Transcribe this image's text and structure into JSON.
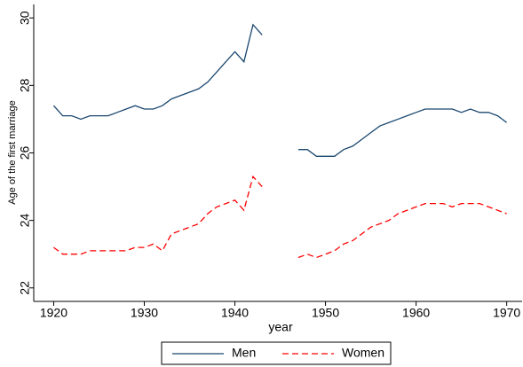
{
  "chart_data": {
    "type": "line",
    "y_label": "Age of the first marriage",
    "x_label": "year",
    "x": [
      1920,
      1921,
      1922,
      1923,
      1924,
      1925,
      1926,
      1927,
      1928,
      1929,
      1930,
      1931,
      1932,
      1933,
      1934,
      1935,
      1936,
      1937,
      1938,
      1939,
      1940,
      1941,
      1942,
      1943,
      1944,
      1945,
      1946,
      1947,
      1948,
      1949,
      1950,
      1951,
      1952,
      1953,
      1954,
      1955,
      1956,
      1957,
      1958,
      1959,
      1960,
      1961,
      1962,
      1963,
      1964,
      1965,
      1966,
      1967,
      1968,
      1969,
      1970
    ],
    "series": [
      {
        "name": "Men",
        "color": "#1a476f",
        "dash": false,
        "values": [
          27.4,
          27.1,
          27.1,
          27.0,
          27.1,
          27.1,
          27.1,
          27.2,
          27.3,
          27.4,
          27.3,
          27.3,
          27.4,
          27.6,
          27.7,
          27.8,
          27.9,
          28.1,
          28.4,
          28.7,
          29.0,
          28.7,
          29.8,
          29.5,
          null,
          null,
          null,
          26.1,
          26.1,
          25.9,
          25.9,
          25.9,
          26.1,
          26.2,
          26.4,
          26.6,
          26.8,
          26.9,
          27.0,
          27.1,
          27.2,
          27.3,
          27.3,
          27.3,
          27.3,
          27.2,
          27.3,
          27.2,
          27.2,
          27.1,
          26.9
        ]
      },
      {
        "name": "Women",
        "color": "#ff0000",
        "dash": true,
        "values": [
          23.2,
          23.0,
          23.0,
          23.0,
          23.1,
          23.1,
          23.1,
          23.1,
          23.1,
          23.2,
          23.2,
          23.3,
          23.1,
          23.6,
          23.7,
          23.8,
          23.9,
          24.2,
          24.4,
          24.5,
          24.6,
          24.3,
          25.3,
          25.0,
          null,
          null,
          null,
          22.9,
          23.0,
          22.9,
          23.0,
          23.1,
          23.3,
          23.4,
          23.6,
          23.8,
          23.9,
          24.0,
          24.2,
          24.3,
          24.4,
          24.5,
          24.5,
          24.5,
          24.4,
          24.5,
          24.5,
          24.5,
          24.4,
          24.3,
          24.2
        ]
      }
    ],
    "xlim": [
      1917.8,
      1971.7
    ],
    "xticks": [
      1920,
      1930,
      1940,
      1950,
      1960,
      1970
    ],
    "ylim": [
      21.6,
      30.4
    ],
    "yticks": [
      22,
      24,
      26,
      28,
      30
    ],
    "grid": false,
    "legend": "bottom"
  }
}
